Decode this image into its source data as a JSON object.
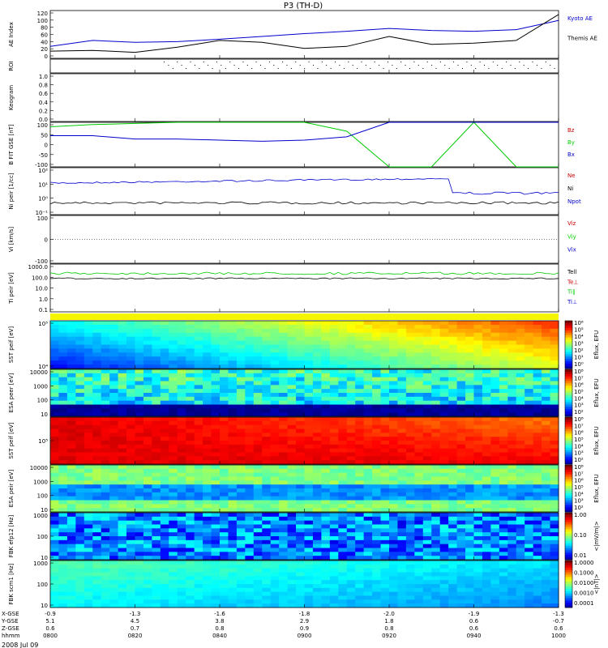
{
  "title": "P3 (TH-D)",
  "date_label": "2008 Jul 09",
  "footer_rows": [
    "X-GSE",
    "Y-GSE",
    "Z-GSE",
    "hhmm"
  ],
  "footer_values": [
    [
      "-0.9",
      "-1.3",
      "-1.6",
      "-1.8",
      "-2.0",
      "-1.9",
      "-1.3"
    ],
    [
      "5.1",
      "4.5",
      "3.8",
      "2.9",
      "1.8",
      "0.6",
      "-0.7"
    ],
    [
      "0.6",
      "0.7",
      "0.8",
      "0.9",
      "0.8",
      "0.6",
      "0.6"
    ],
    [
      "0800",
      "0820",
      "0840",
      "0900",
      "0920",
      "0940",
      "1000"
    ]
  ],
  "x_ticks": [
    "0800",
    "0820",
    "0840",
    "0900",
    "0920",
    "0940",
    "1000"
  ],
  "chart_data": [
    {
      "id": "ae",
      "type": "line",
      "ylabel": "AE Index",
      "ylim": [
        0,
        120
      ],
      "yticks": [
        "0",
        "20",
        "40",
        "60",
        "80",
        "100",
        "120"
      ],
      "x": [
        "0800",
        "0810",
        "0820",
        "0830",
        "0840",
        "0850",
        "0900",
        "0910",
        "0920",
        "0930",
        "0940",
        "0950",
        "1000"
      ],
      "series": [
        {
          "name": "Kyoto AE",
          "color": "#0000cc",
          "values": [
            30,
            45,
            40,
            42,
            48,
            55,
            62,
            68,
            75,
            70,
            68,
            72,
            95
          ]
        },
        {
          "name": "Themis AE",
          "color": "#000000",
          "values": [
            18,
            20,
            15,
            28,
            45,
            40,
            25,
            30,
            55,
            35,
            38,
            45,
            110
          ]
        }
      ]
    },
    {
      "id": "roi",
      "type": "scatter",
      "ylabel": "ROI",
      "yticks": []
    },
    {
      "id": "keogram",
      "type": "line",
      "ylabel": "Keogram",
      "ylim": [
        0,
        1
      ],
      "yticks": [
        "0.0",
        "0.2",
        "0.4",
        "0.6",
        "0.8",
        "1.0"
      ]
    },
    {
      "id": "bfield",
      "type": "line",
      "ylabel": "B FIT GSE [nT]",
      "ylim": [
        -100,
        100
      ],
      "yticks": [
        "-100",
        "-50",
        "0",
        "50",
        "100"
      ],
      "series": [
        {
          "name": "Bz",
          "color": "#cc0000",
          "values": []
        },
        {
          "name": "By",
          "color": "#00cc00",
          "values": [
            80,
            90,
            95,
            100,
            100,
            100,
            100,
            60,
            -100,
            -100,
            100,
            -100,
            -100
          ]
        },
        {
          "name": "Bx",
          "color": "#0000cc",
          "values": [
            40,
            40,
            25,
            25,
            20,
            15,
            20,
            35,
            100,
            100,
            100,
            100,
            100
          ]
        }
      ]
    },
    {
      "id": "density",
      "type": "line",
      "ylabel": "Ni peir [1/cc]",
      "yticks": [
        "10⁻¹",
        "10⁰",
        "10¹",
        "10²"
      ],
      "series": [
        {
          "name": "Ne",
          "color": "#cc0000",
          "values": []
        },
        {
          "name": "Ni",
          "color": "#000000",
          "values": []
        },
        {
          "name": "Npot",
          "color": "#0000cc",
          "values": []
        }
      ]
    },
    {
      "id": "velocity",
      "type": "line",
      "ylabel": "Vi [km/s]",
      "yticks": [
        "-100",
        "0",
        "100"
      ],
      "series": [
        {
          "name": "Viz",
          "color": "#cc0000",
          "values": []
        },
        {
          "name": "Viy",
          "color": "#00cc00",
          "values": []
        },
        {
          "name": "Vix",
          "color": "#0000cc",
          "values": []
        }
      ]
    },
    {
      "id": "temperature",
      "type": "line",
      "ylabel": "Ti peir [eV]",
      "yticks": [
        "0.1",
        "1.0",
        "10.0",
        "100.0",
        "1000.0"
      ],
      "series": [
        {
          "name": "Tell",
          "color": "#000000",
          "values": []
        },
        {
          "name": "Te⊥",
          "color": "#cc0000",
          "values": []
        },
        {
          "name": "Ti∥",
          "color": "#00cc00",
          "values": []
        },
        {
          "name": "Ti⊥",
          "color": "#0000cc",
          "values": []
        }
      ]
    },
    {
      "id": "sst_e",
      "type": "heatmap",
      "ylabel": "SST peif [eV]",
      "yticks": [
        "10⁴",
        "10⁵"
      ],
      "colorbar": {
        "label": "Eflux, EFU",
        "ticks": [
          "10⁶",
          "10⁵",
          "10⁴",
          "10³",
          "10²",
          "10¹",
          "10⁰"
        ]
      }
    },
    {
      "id": "esa_e",
      "type": "heatmap",
      "ylabel": "ESA peer [eV]",
      "yticks": [
        "10",
        "100",
        "1000",
        "10000"
      ],
      "colorbar": {
        "label": "Eflux, EFU",
        "ticks": [
          "10⁸",
          "10⁷",
          "10⁶",
          "10⁵",
          "10⁴",
          "10³",
          "10²"
        ]
      }
    },
    {
      "id": "sst_i",
      "type": "heatmap",
      "ylabel": "SST peif [eV]",
      "yticks": [
        "10⁵"
      ],
      "colorbar": {
        "label": "Eflux, EFU",
        "ticks": [
          "10⁸",
          "10⁷",
          "10⁶",
          "10⁵",
          "10⁴",
          "10³",
          "10²"
        ]
      }
    },
    {
      "id": "esa_i",
      "type": "heatmap",
      "ylabel": "ESA peir [eV]",
      "yticks": [
        "10",
        "100",
        "1000",
        "10000"
      ],
      "colorbar": {
        "label": "Eflux, EFU",
        "ticks": [
          "10⁸",
          "10⁷",
          "10⁶",
          "10⁵",
          "10⁴",
          "10³",
          "10²"
        ]
      }
    },
    {
      "id": "fbk_e",
      "type": "heatmap",
      "ylabel": "FBK efp12 [Hz]",
      "yticks": [
        "10",
        "100",
        "1000"
      ],
      "colorbar": {
        "label": "<|mV/m|>",
        "ticks": [
          "1.00",
          "0.10",
          "0.01"
        ]
      }
    },
    {
      "id": "fbk_b",
      "type": "heatmap",
      "ylabel": "FBK scm1 [Hz]",
      "yticks": [
        "10",
        "100",
        "1000"
      ],
      "colorbar": {
        "label": "<|nT|>",
        "ticks": [
          "1.0000",
          "0.1000",
          "0.0100",
          "0.0010",
          "0.0001"
        ]
      }
    }
  ]
}
